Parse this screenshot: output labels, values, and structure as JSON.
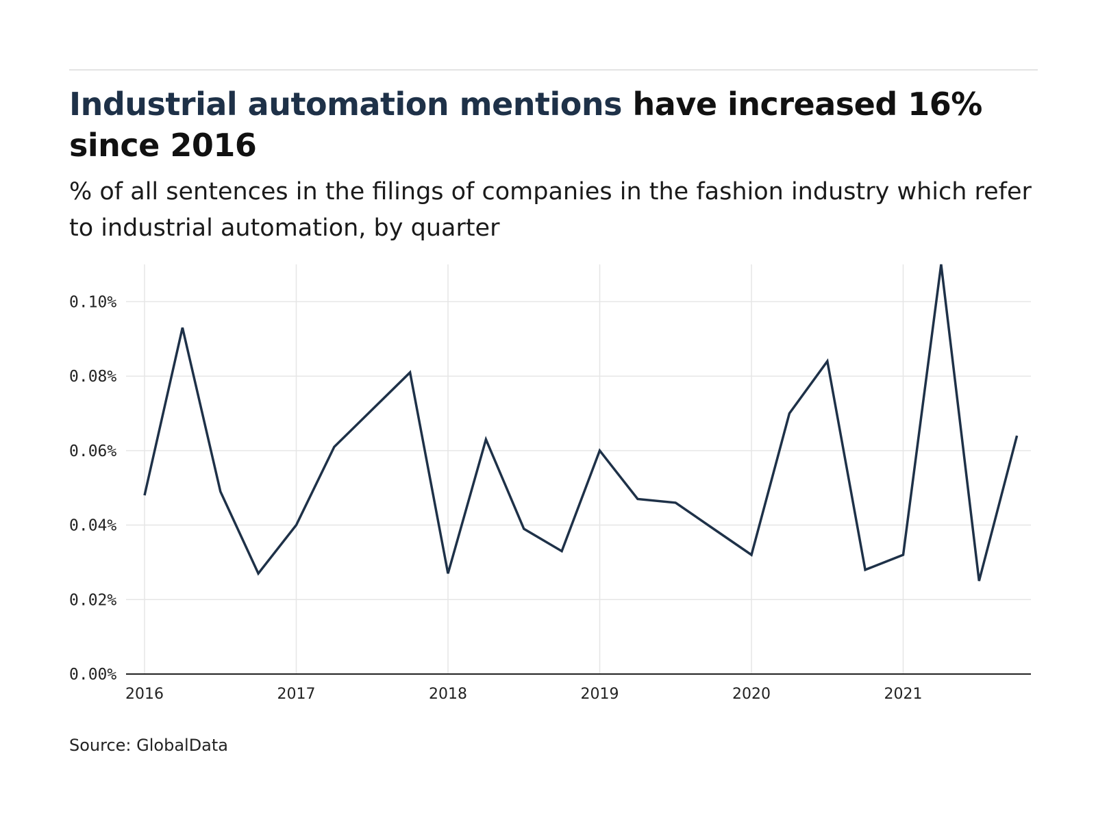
{
  "header": {
    "title_highlight": "Industrial automation mentions",
    "title_rest": "have increased 16% since 2016",
    "subtitle": "% of all sentences in the filings of companies in the fashion industry which refer to industrial automation, by quarter"
  },
  "footer": {
    "source": "Source: GlobalData"
  },
  "colors": {
    "line": "#1e3148",
    "grid": "#e6e6e6",
    "axis": "#222222",
    "title_highlight": "#1e3148"
  },
  "chart_data": {
    "type": "line",
    "title": "Industrial automation mentions have increased 16% since 2016",
    "subtitle": "% of all sentences in the filings of companies in the fashion industry which refer to industrial automation, by quarter",
    "xlabel": "",
    "ylabel": "",
    "x": [
      "2016-Q1",
      "2016-Q2",
      "2016-Q3",
      "2016-Q4",
      "2017-Q1",
      "2017-Q2",
      "2017-Q3",
      "2017-Q4",
      "2018-Q1",
      "2018-Q2",
      "2018-Q3",
      "2018-Q4",
      "2019-Q1",
      "2019-Q2",
      "2019-Q3",
      "2019-Q4",
      "2020-Q1",
      "2020-Q2",
      "2020-Q3",
      "2020-Q4",
      "2021-Q1",
      "2021-Q2",
      "2021-Q3",
      "2021-Q4"
    ],
    "series": [
      {
        "values": [
          0.048,
          0.093,
          0.049,
          0.027,
          0.04,
          0.061,
          0.071,
          0.081,
          0.027,
          0.063,
          0.039,
          0.033,
          0.06,
          0.047,
          0.046,
          0.039,
          0.032,
          0.07,
          0.084,
          0.028,
          0.032,
          0.11,
          0.025,
          0.064
        ]
      }
    ],
    "xticks": [
      "2016",
      "2017",
      "2018",
      "2019",
      "2020",
      "2021"
    ],
    "yticks": [
      "0.00%",
      "0.02%",
      "0.04%",
      "0.06%",
      "0.08%",
      "0.10%"
    ],
    "ylim": [
      0,
      0.11
    ],
    "grid": true,
    "legend": "none"
  }
}
